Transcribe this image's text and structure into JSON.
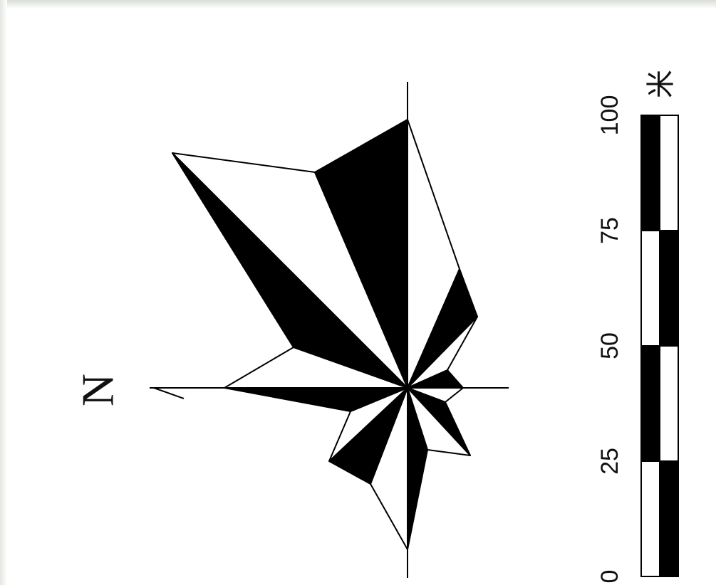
{
  "compass": {
    "north_label": "N"
  },
  "scale_bar": {
    "ticks": [
      "0",
      "25",
      "50",
      "75",
      "100"
    ],
    "unit": "米"
  },
  "colors": {
    "ink": "#000000",
    "paper": "#ffffff"
  }
}
